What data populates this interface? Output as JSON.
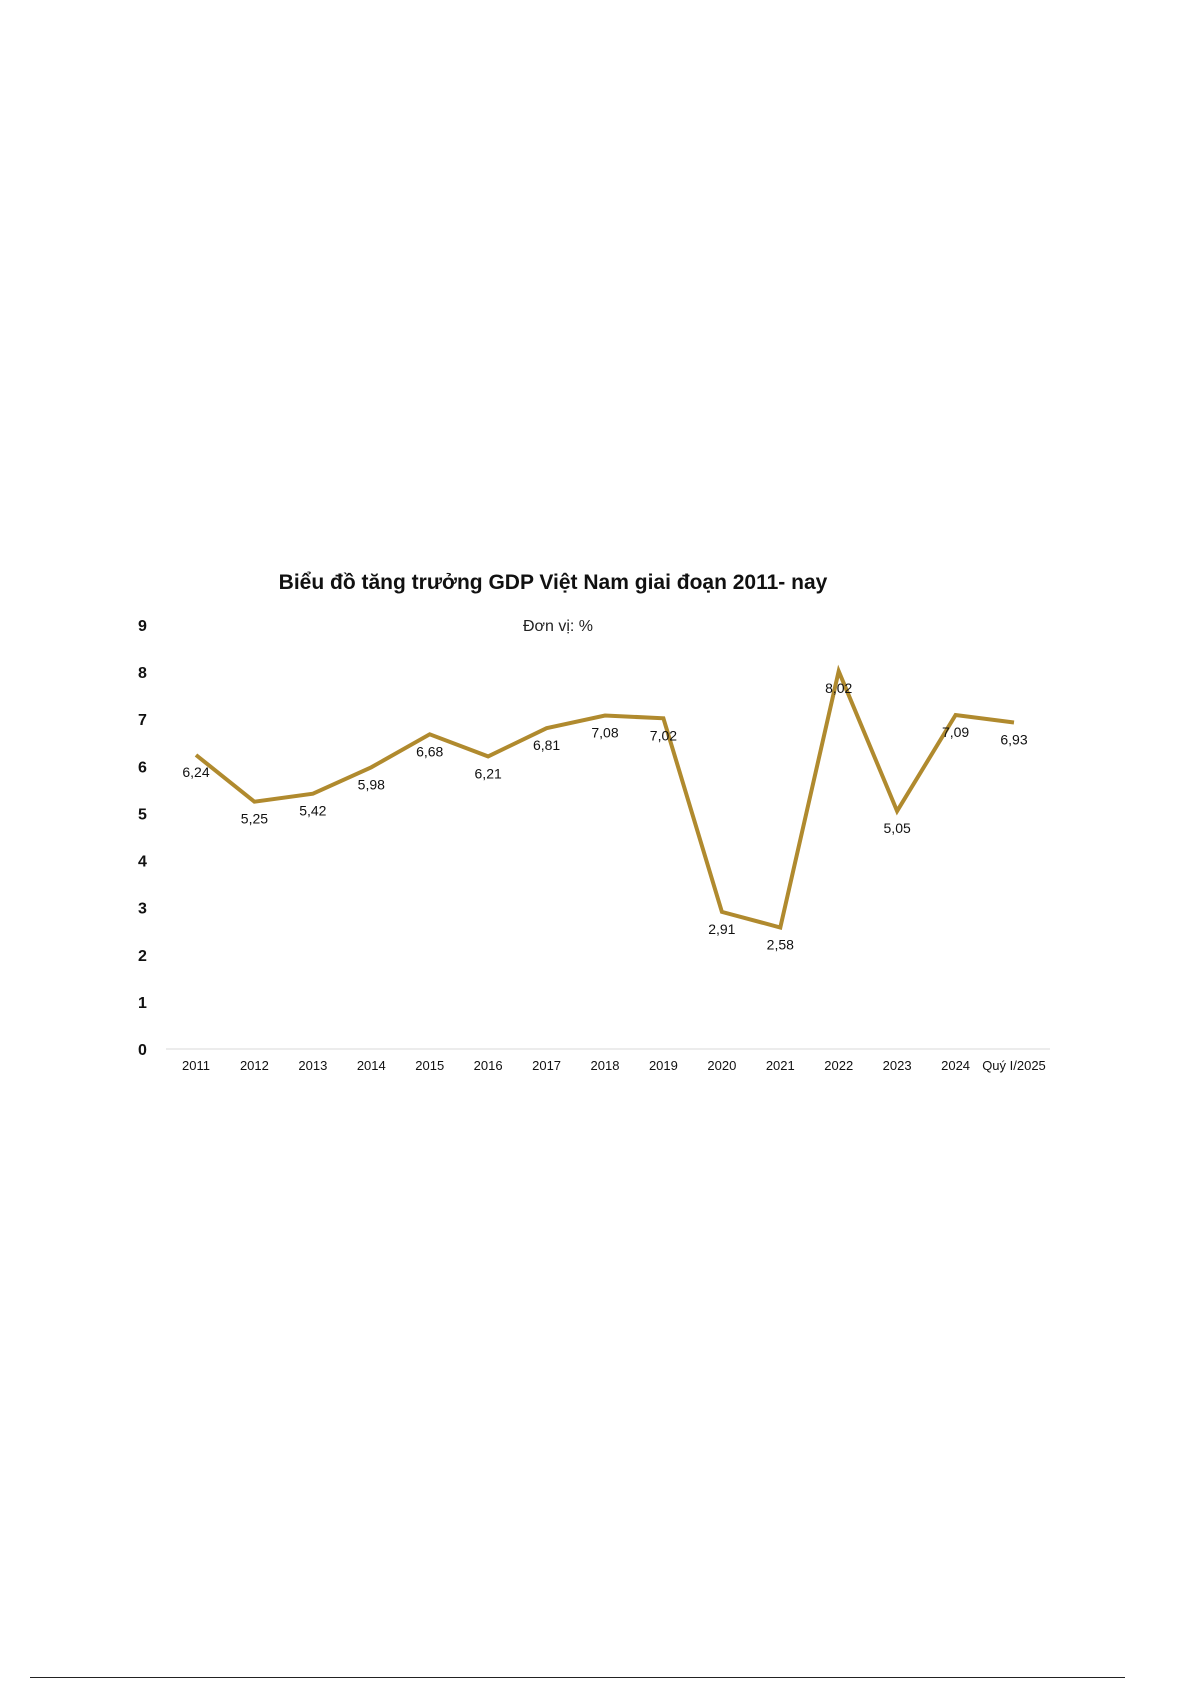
{
  "chart_data": {
    "type": "line",
    "title": "Biểu đồ tăng trưởng GDP Việt Nam giai đoạn 2011- nay",
    "subtitle": "Đơn vị: %",
    "categories": [
      "2011",
      "2012",
      "2013",
      "2014",
      "2015",
      "2016",
      "2017",
      "2018",
      "2019",
      "2020",
      "2021",
      "2022",
      "2023",
      "2024",
      "Quý I/2025"
    ],
    "series": [
      {
        "values": [
          6.24,
          5.25,
          5.42,
          5.98,
          6.68,
          6.21,
          6.81,
          7.08,
          7.02,
          2.91,
          2.58,
          8.02,
          5.05,
          7.09,
          6.93
        ]
      }
    ],
    "data_labels": [
      "6,24",
      "5,25",
      "5,42",
      "5,98",
      "6,68",
      "6,21",
      "6,81",
      "7,08",
      "7,02",
      "2,91",
      "2,58",
      "8,02",
      "5,05",
      "7,09",
      "6,93"
    ],
    "yticks": [
      "0",
      "1",
      "2",
      "3",
      "4",
      "5",
      "6",
      "7",
      "8",
      "9"
    ],
    "ylim": [
      0,
      9
    ],
    "xlabel": "",
    "ylabel": "",
    "grid": false,
    "line_color": "#B08A2E",
    "axis_color": "#d9d9d9"
  }
}
